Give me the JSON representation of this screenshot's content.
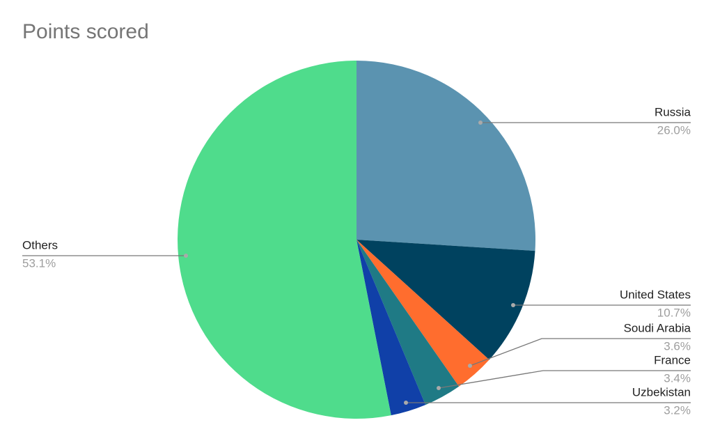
{
  "chart_data": {
    "type": "pie",
    "title": "Points scored",
    "categories": [
      "Russia",
      "United States",
      "Soudi Arabia",
      "France",
      "Uzbekistan",
      "Others"
    ],
    "values": [
      26.0,
      10.7,
      3.6,
      3.4,
      3.2,
      53.1
    ],
    "value_labels": [
      "26.0%",
      "10.7%",
      "3.6%",
      "3.4%",
      "3.2%",
      "53.1%"
    ],
    "colors": [
      "#5b93b0",
      "#00425f",
      "#ff6d2e",
      "#1f7a85",
      "#1040a8",
      "#4fdc8c"
    ]
  }
}
